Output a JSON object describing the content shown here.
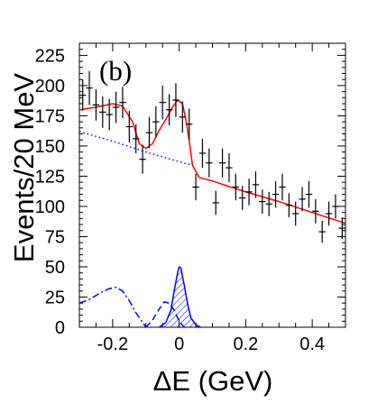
{
  "chart_data": {
    "type": "line",
    "panel_label": "(b)",
    "xlabel": "ΔE (GeV)",
    "ylabel": "Events/20 MeV",
    "xlim": [
      -0.3,
      0.5
    ],
    "ylim": [
      0,
      235
    ],
    "x_ticks": [
      -0.2,
      0,
      0.2,
      0.4
    ],
    "x_tick_labels": [
      "-0.2",
      "0",
      "0.2",
      "0.4"
    ],
    "y_ticks": [
      0,
      25,
      50,
      75,
      100,
      125,
      150,
      175,
      200,
      225
    ],
    "y_tick_labels": [
      "0",
      "25",
      "50",
      "75",
      "100",
      "125",
      "150",
      "175",
      "200",
      "225"
    ],
    "grid": false,
    "colors": {
      "data": "#000000",
      "fit": "#ff0000",
      "background": "#0000ff",
      "components": "#0000ff",
      "hatch": "#0000ff"
    },
    "data_points": [
      {
        "x": -0.29,
        "y": 192,
        "err": 13
      },
      {
        "x": -0.27,
        "y": 198,
        "err": 14
      },
      {
        "x": -0.25,
        "y": 184,
        "err": 13
      },
      {
        "x": -0.23,
        "y": 178,
        "err": 13
      },
      {
        "x": -0.21,
        "y": 176,
        "err": 13
      },
      {
        "x": -0.19,
        "y": 182,
        "err": 13
      },
      {
        "x": -0.17,
        "y": 186,
        "err": 13
      },
      {
        "x": -0.15,
        "y": 166,
        "err": 13
      },
      {
        "x": -0.13,
        "y": 156,
        "err": 12
      },
      {
        "x": -0.11,
        "y": 139,
        "err": 12
      },
      {
        "x": -0.09,
        "y": 161,
        "err": 13
      },
      {
        "x": -0.07,
        "y": 170,
        "err": 13
      },
      {
        "x": -0.05,
        "y": 186,
        "err": 14
      },
      {
        "x": -0.03,
        "y": 180,
        "err": 13
      },
      {
        "x": -0.01,
        "y": 188,
        "err": 14
      },
      {
        "x": 0.01,
        "y": 174,
        "err": 13
      },
      {
        "x": 0.03,
        "y": 168,
        "err": 13
      },
      {
        "x": 0.05,
        "y": 116,
        "err": 11
      },
      {
        "x": 0.07,
        "y": 144,
        "err": 12
      },
      {
        "x": 0.09,
        "y": 136,
        "err": 12
      },
      {
        "x": 0.11,
        "y": 103,
        "err": 10
      },
      {
        "x": 0.13,
        "y": 136,
        "err": 12
      },
      {
        "x": 0.15,
        "y": 132,
        "err": 12
      },
      {
        "x": 0.17,
        "y": 116,
        "err": 11
      },
      {
        "x": 0.19,
        "y": 107,
        "err": 10
      },
      {
        "x": 0.21,
        "y": 112,
        "err": 11
      },
      {
        "x": 0.23,
        "y": 118,
        "err": 11
      },
      {
        "x": 0.25,
        "y": 104,
        "err": 10
      },
      {
        "x": 0.27,
        "y": 102,
        "err": 10
      },
      {
        "x": 0.29,
        "y": 110,
        "err": 11
      },
      {
        "x": 0.31,
        "y": 116,
        "err": 11
      },
      {
        "x": 0.33,
        "y": 101,
        "err": 10
      },
      {
        "x": 0.35,
        "y": 94,
        "err": 10
      },
      {
        "x": 0.37,
        "y": 106,
        "err": 10
      },
      {
        "x": 0.39,
        "y": 110,
        "err": 11
      },
      {
        "x": 0.41,
        "y": 96,
        "err": 10
      },
      {
        "x": 0.43,
        "y": 79,
        "err": 9
      },
      {
        "x": 0.45,
        "y": 94,
        "err": 10
      },
      {
        "x": 0.47,
        "y": 100,
        "err": 10
      },
      {
        "x": 0.49,
        "y": 82,
        "err": 9
      }
    ],
    "curves": [
      {
        "style": "solid",
        "color": "#ff0000",
        "points": [
          [
            -0.3,
            180
          ],
          [
            -0.25,
            182
          ],
          [
            -0.2,
            185
          ],
          [
            -0.17,
            183
          ],
          [
            -0.14,
            170
          ],
          [
            -0.12,
            152
          ],
          [
            -0.1,
            148
          ],
          [
            -0.08,
            152
          ],
          [
            -0.06,
            163
          ],
          [
            -0.04,
            172
          ],
          [
            -0.02,
            182
          ],
          [
            -0.005,
            188
          ],
          [
            0.01,
            185
          ],
          [
            0.02,
            172
          ],
          [
            0.03,
            155
          ],
          [
            0.04,
            134
          ],
          [
            0.06,
            124
          ],
          [
            0.1,
            121
          ],
          [
            0.2,
            112
          ],
          [
            0.3,
            104
          ],
          [
            0.4,
            95
          ],
          [
            0.5,
            86
          ]
        ]
      },
      {
        "style": "dotted",
        "color": "#0000ff",
        "points": [
          [
            -0.3,
            162
          ],
          [
            -0.2,
            154
          ],
          [
            -0.1,
            145
          ],
          [
            0.0,
            137
          ],
          [
            0.04,
            134
          ]
        ]
      },
      {
        "style": "dashdot",
        "color": "#0000ff",
        "points": [
          [
            -0.3,
            20
          ],
          [
            -0.27,
            23
          ],
          [
            -0.24,
            28
          ],
          [
            -0.21,
            32
          ],
          [
            -0.19,
            33
          ],
          [
            -0.17,
            30
          ],
          [
            -0.15,
            22
          ],
          [
            -0.13,
            12
          ],
          [
            -0.11,
            4
          ],
          [
            -0.1,
            0
          ]
        ]
      },
      {
        "style": "dashed",
        "color": "#0000ff",
        "points": [
          [
            -0.1,
            0
          ],
          [
            -0.08,
            6
          ],
          [
            -0.06,
            15
          ],
          [
            -0.045,
            21
          ],
          [
            -0.03,
            20
          ],
          [
            -0.015,
            14
          ],
          [
            0.0,
            5
          ],
          [
            0.015,
            0
          ]
        ]
      },
      {
        "style": "solid",
        "color": "#0000ff",
        "hatched": true,
        "points": [
          [
            -0.06,
            0
          ],
          [
            -0.04,
            4
          ],
          [
            -0.025,
            14
          ],
          [
            -0.015,
            30
          ],
          [
            -0.005,
            45
          ],
          [
            0.0,
            50
          ],
          [
            0.005,
            49
          ],
          [
            0.015,
            35
          ],
          [
            0.025,
            20
          ],
          [
            0.035,
            8
          ],
          [
            0.05,
            2
          ],
          [
            0.065,
            0
          ]
        ]
      }
    ]
  }
}
